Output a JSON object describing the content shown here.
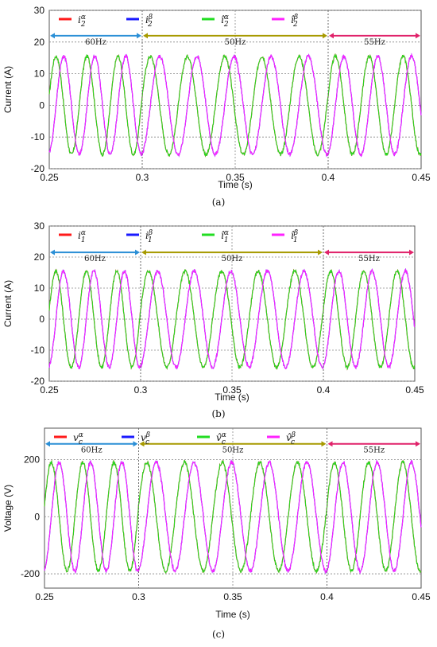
{
  "colors": {
    "red": "#ff1a1a",
    "blue": "#1a1aff",
    "green": "#22dd22",
    "magenta": "#ff22ff",
    "arrow_60": "#2b8fd6",
    "arrow_50": "#a79a00",
    "arrow_55": "#e0226a"
  },
  "chart_data": [
    {
      "type": "line",
      "caption": "(a)",
      "xlabel": "Time (s)",
      "ylabel": "Current (A)",
      "xlim": [
        0.25,
        0.45
      ],
      "ylim": [
        -20,
        30
      ],
      "xticks": [
        0.25,
        0.3,
        0.35,
        0.4,
        0.45
      ],
      "xtick_labels": [
        "0.25",
        "0.3",
        "0.35",
        "0.4",
        "0.45"
      ],
      "yticks": [
        -20,
        -10,
        0,
        10,
        20,
        30
      ],
      "ytick_labels": [
        "-20",
        "-10",
        "0",
        "10",
        "20",
        "30"
      ],
      "grid": true,
      "legend_position": "top",
      "legend": [
        {
          "base": "i",
          "sub": "2",
          "sup": "α",
          "hat": false,
          "color": "#ff1a1a"
        },
        {
          "base": "i",
          "sub": "2",
          "sup": "β",
          "hat": false,
          "color": "#1a1aff"
        },
        {
          "base": "î",
          "sub": "2",
          "sup": "α",
          "hat": true,
          "color": "#22dd22"
        },
        {
          "base": "î",
          "sub": "2",
          "sup": "β",
          "hat": true,
          "color": "#ff22ff"
        }
      ],
      "amplitude": 15.5,
      "arrow_y": 22,
      "segments": [
        {
          "label": "60Hz",
          "x0": 0.25,
          "x1": 0.3,
          "freq": 60,
          "color": "#2b8fd6"
        },
        {
          "label": "50Hz",
          "x0": 0.3,
          "x1": 0.4,
          "freq": 50,
          "color": "#a79a00"
        },
        {
          "label": "55Hz",
          "x0": 0.4,
          "x1": 0.45,
          "freq": 55,
          "color": "#e0226a"
        }
      ]
    },
    {
      "type": "line",
      "caption": "(b)",
      "xlabel": "Time (s)",
      "ylabel": "Current (A)",
      "xlim": [
        0.25,
        0.45
      ],
      "ylim": [
        -20,
        30
      ],
      "xticks": [
        0.25,
        0.3,
        0.35,
        0.4,
        0.45
      ],
      "xtick_labels": [
        "0.25",
        "0.3",
        "0.35",
        "0.4",
        "0.45"
      ],
      "yticks": [
        -20,
        -10,
        0,
        10,
        20,
        30
      ],
      "ytick_labels": [
        "-20",
        "-10",
        "0",
        "10",
        "20",
        "30"
      ],
      "grid": true,
      "legend_position": "top",
      "legend": [
        {
          "base": "i",
          "sub": "1",
          "sup": "α",
          "hat": false,
          "color": "#ff1a1a"
        },
        {
          "base": "i",
          "sub": "1",
          "sup": "β",
          "hat": false,
          "color": "#1a1aff"
        },
        {
          "base": "î",
          "sub": "1",
          "sup": "α",
          "hat": true,
          "color": "#22dd22"
        },
        {
          "base": "î",
          "sub": "1",
          "sup": "β",
          "hat": true,
          "color": "#ff22ff"
        }
      ],
      "amplitude": 15.5,
      "arrow_y": 21.5,
      "segments": [
        {
          "label": "60Hz",
          "x0": 0.25,
          "x1": 0.3,
          "freq": 60,
          "color": "#2b8fd6"
        },
        {
          "label": "50Hz",
          "x0": 0.3,
          "x1": 0.4,
          "freq": 50,
          "color": "#a79a00"
        },
        {
          "label": "55Hz",
          "x0": 0.4,
          "x1": 0.45,
          "freq": 55,
          "color": "#e0226a"
        }
      ]
    },
    {
      "type": "line",
      "caption": "(c)",
      "xlabel": "Time (s)",
      "ylabel": "Voltage (V)",
      "xlim": [
        0.25,
        0.45
      ],
      "ylim": [
        -250,
        310
      ],
      "xticks": [
        0.25,
        0.3,
        0.35,
        0.4,
        0.45
      ],
      "xtick_labels": [
        "0.25",
        "0.3",
        "0.35",
        "0.4",
        "0.45"
      ],
      "yticks": [
        -200,
        0,
        200
      ],
      "ytick_labels": [
        "-200",
        "0",
        "200"
      ],
      "grid": true,
      "legend_position": "top",
      "legend": [
        {
          "base": "v",
          "sub": "c",
          "sup": "α",
          "hat": false,
          "color": "#ff1a1a"
        },
        {
          "base": "v",
          "sub": "c",
          "sup": "β",
          "hat": false,
          "color": "#1a1aff"
        },
        {
          "base": "v̂",
          "sub": "c",
          "sup": "α",
          "hat": true,
          "color": "#22dd22"
        },
        {
          "base": "v̂",
          "sub": "c",
          "sup": "β",
          "hat": true,
          "color": "#ff22ff"
        }
      ],
      "amplitude": 190,
      "arrow_y": 255,
      "segments": [
        {
          "label": "60Hz",
          "x0": 0.25,
          "x1": 0.3,
          "freq": 60,
          "color": "#2b8fd6"
        },
        {
          "label": "50Hz",
          "x0": 0.3,
          "x1": 0.4,
          "freq": 50,
          "color": "#a79a00"
        },
        {
          "label": "55Hz",
          "x0": 0.4,
          "x1": 0.45,
          "freq": 55,
          "color": "#e0226a"
        }
      ]
    }
  ]
}
